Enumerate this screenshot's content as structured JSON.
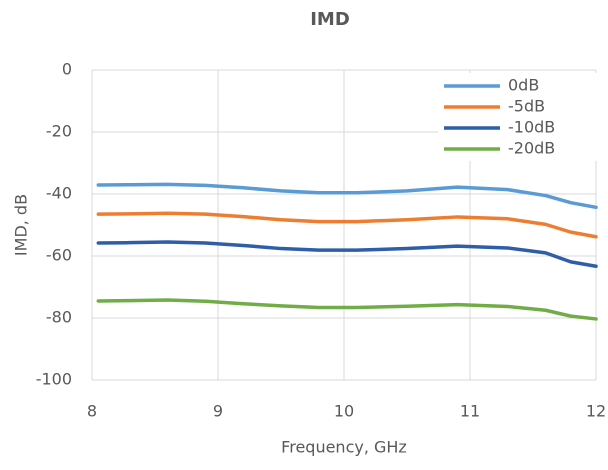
{
  "chart_data": {
    "type": "line",
    "title": "IMD",
    "x_label": "Frequency, GHz",
    "y_label": "IMD, dB",
    "x": [
      8.05,
      8.3,
      8.6,
      8.9,
      9.2,
      9.5,
      9.8,
      10.1,
      10.5,
      10.9,
      11.3,
      11.6,
      11.8,
      12.0
    ],
    "series": [
      {
        "name": "0dB",
        "color": "#5b9bd5",
        "values": [
          -37.1,
          -37,
          -36.9,
          -37.2,
          -38,
          -39,
          -39.6,
          -39.6,
          -39,
          -37.8,
          -38.6,
          -40.5,
          -42.8,
          -44.3
        ]
      },
      {
        "name": "-5dB",
        "color": "#ed7d31",
        "values": [
          -46.5,
          -46.4,
          -46.2,
          -46.5,
          -47.3,
          -48.3,
          -48.9,
          -48.9,
          -48.3,
          -47.4,
          -48,
          -49.8,
          -52.3,
          -53.8
        ]
      },
      {
        "name": "-10dB",
        "color": "#2e5ea8",
        "values": [
          -55.8,
          -55.7,
          -55.5,
          -55.8,
          -56.6,
          -57.6,
          -58.1,
          -58.1,
          -57.6,
          -56.8,
          -57.4,
          -59,
          -61.9,
          -63.3
        ]
      },
      {
        "name": "-20dB",
        "color": "#70ad47",
        "values": [
          -74.5,
          -74.4,
          -74.2,
          -74.6,
          -75.4,
          -76.1,
          -76.6,
          -76.6,
          -76.2,
          -75.7,
          -76.3,
          -77.5,
          -79.4,
          -80.3
        ]
      }
    ],
    "xlim": [
      8,
      12
    ],
    "xticks": [
      8,
      9,
      10,
      11,
      12
    ],
    "ylim": [
      -100,
      0
    ],
    "yticks": [
      -100,
      -80,
      -60,
      -40,
      -20,
      0
    ],
    "grid": true,
    "legend": "upper right"
  }
}
